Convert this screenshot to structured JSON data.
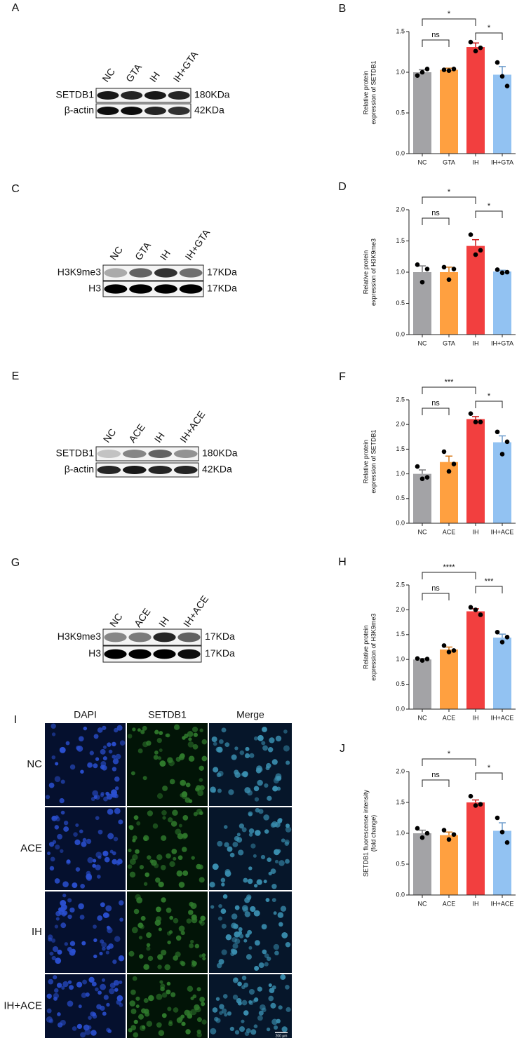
{
  "panels": [
    "A",
    "C",
    "E",
    "G",
    "I"
  ],
  "blots": [
    {
      "lanes": [
        "NC",
        "GTA",
        "IH",
        "IH+GTA"
      ],
      "rows": [
        {
          "name": "SETDB1",
          "size": "180KDa"
        },
        {
          "name": "β-actin",
          "size": "42KDa"
        }
      ]
    },
    {
      "lanes": [
        "NC",
        "GTA",
        "IH",
        "IH+GTA"
      ],
      "rows": [
        {
          "name": "H3K9me3",
          "size": "17KDa"
        },
        {
          "name": "H3",
          "size": "17KDa"
        }
      ]
    },
    {
      "lanes": [
        "NC",
        "ACE",
        "IH",
        "IH+ACE"
      ],
      "rows": [
        {
          "name": "SETDB1",
          "size": "180KDa"
        },
        {
          "name": "β-actin",
          "size": "42KDa"
        }
      ]
    },
    {
      "lanes": [
        "NC",
        "ACE",
        "IH",
        "IH+ACE"
      ],
      "rows": [
        {
          "name": "H3K9me3",
          "size": "17KDa"
        },
        {
          "name": "H3",
          "size": "17KDa"
        }
      ]
    }
  ],
  "microscopy": {
    "columns": [
      "DAPI",
      "SETDB1",
      "Merge"
    ],
    "rows": [
      "NC",
      "ACE",
      "IH",
      "IH+ACE"
    ],
    "scale_bar": "200 μm"
  },
  "chart_data": [
    {
      "type": "bar",
      "label": "B",
      "ylabel": [
        "Relative protein",
        "expression of SETDB1"
      ],
      "categories": [
        "NC",
        "GTA",
        "IH",
        "IH+GTA"
      ],
      "values": [
        1.0,
        1.03,
        1.31,
        0.97
      ],
      "errors": [
        0.03,
        0.02,
        0.05,
        0.1
      ],
      "points": [
        [
          0.96,
          1.0,
          1.04
        ],
        [
          1.03,
          1.02,
          1.04
        ],
        [
          1.37,
          1.26,
          1.3
        ],
        [
          1.12,
          0.95,
          0.83
        ]
      ],
      "colors": [
        "#a3a3a6",
        "#ffa040",
        "#f23f3f",
        "#92c2f2"
      ],
      "ylim": [
        0,
        1.5
      ],
      "yticks": [
        {
          "value": 0,
          "label": "0.0"
        },
        {
          "value": 0.5,
          "label": "0.5"
        },
        {
          "value": 1,
          "label": "1.0"
        },
        {
          "value": 1.5,
          "label": "1.5"
        }
      ],
      "annotations": [
        "*",
        "ns",
        "*"
      ]
    },
    {
      "type": "bar",
      "label": "D",
      "ylabel": [
        "Relative protein",
        "expression of H3K9me3"
      ],
      "categories": [
        "NC",
        "GTA",
        "IH",
        "IH+GTA"
      ],
      "values": [
        1.0,
        1.0,
        1.42,
        1.01
      ],
      "errors": [
        0.1,
        0.08,
        0.1,
        0.02
      ],
      "points": [
        [
          1.12,
          0.84,
          1.05
        ],
        [
          1.08,
          0.88,
          1.05
        ],
        [
          1.6,
          1.28,
          1.35
        ],
        [
          1.04,
          0.99,
          1.0
        ]
      ],
      "colors": [
        "#a3a3a6",
        "#ffa040",
        "#f23f3f",
        "#92c2f2"
      ],
      "ylim": [
        0,
        2
      ],
      "yticks": [
        {
          "value": 0,
          "label": "0.0"
        },
        {
          "value": 0.5,
          "label": "0.5"
        },
        {
          "value": 1,
          "label": "1.0"
        },
        {
          "value": 1.5,
          "label": "1.5"
        },
        {
          "value": 2,
          "label": "2.0"
        }
      ],
      "annotations": [
        "*",
        "ns",
        "*"
      ]
    },
    {
      "type": "bar",
      "label": "F",
      "ylabel": [
        "Relative protein",
        "expression of SETDB1"
      ],
      "categories": [
        "NC",
        "ACE",
        "IH",
        "IH+ACE"
      ],
      "values": [
        1.0,
        1.24,
        2.11,
        1.64
      ],
      "errors": [
        0.08,
        0.12,
        0.05,
        0.13
      ],
      "points": [
        [
          1.15,
          0.9,
          0.93
        ],
        [
          1.45,
          1.05,
          1.2
        ],
        [
          2.22,
          2.05,
          2.05
        ],
        [
          1.85,
          1.4,
          1.65
        ]
      ],
      "colors": [
        "#a3a3a6",
        "#ffa040",
        "#f23f3f",
        "#92c2f2"
      ],
      "ylim": [
        0,
        2.5
      ],
      "yticks": [
        {
          "value": 0,
          "label": "0.0"
        },
        {
          "value": 0.5,
          "label": "0.5"
        },
        {
          "value": 1,
          "label": "1.0"
        },
        {
          "value": 1.5,
          "label": "1.5"
        },
        {
          "value": 2,
          "label": "2.0"
        },
        {
          "value": 2.5,
          "label": "2.5"
        }
      ],
      "annotations": [
        "***",
        "ns",
        "*"
      ]
    },
    {
      "type": "bar",
      "label": "H",
      "ylabel": [
        "Relative protein",
        "expression of H3K9me3"
      ],
      "categories": [
        "NC",
        "ACE",
        "IH",
        "IH+ACE"
      ],
      "values": [
        1.0,
        1.2,
        1.97,
        1.44
      ],
      "errors": [
        0.02,
        0.05,
        0.05,
        0.07
      ],
      "points": [
        [
          1.02,
          0.98,
          1.01
        ],
        [
          1.28,
          1.15,
          1.18
        ],
        [
          2.05,
          2.0,
          1.9
        ],
        [
          1.55,
          1.35,
          1.45
        ]
      ],
      "colors": [
        "#a3a3a6",
        "#ffa040",
        "#f23f3f",
        "#92c2f2"
      ],
      "ylim": [
        0,
        2.5
      ],
      "yticks": [
        {
          "value": 0,
          "label": "0.0"
        },
        {
          "value": 0.5,
          "label": "0.5"
        },
        {
          "value": 1,
          "label": "1.0"
        },
        {
          "value": 1.5,
          "label": "1.5"
        },
        {
          "value": 2,
          "label": "2.0"
        },
        {
          "value": 2.5,
          "label": "2.5"
        }
      ],
      "annotations": [
        "****",
        "ns",
        "***"
      ]
    },
    {
      "type": "bar",
      "label": "J",
      "ylabel": [
        "SETDB1 fluorescense intensity",
        "(fold change)"
      ],
      "categories": [
        "NC",
        "ACE",
        "IH",
        "IH+ACE"
      ],
      "values": [
        1.0,
        0.97,
        1.5,
        1.04
      ],
      "errors": [
        0.05,
        0.05,
        0.04,
        0.13
      ],
      "points": [
        [
          1.08,
          0.93,
          1.0
        ],
        [
          1.05,
          0.9,
          0.98
        ],
        [
          1.6,
          1.45,
          1.47
        ],
        [
          1.25,
          1.02,
          0.85
        ]
      ],
      "colors": [
        "#a3a3a6",
        "#ffa040",
        "#f23f3f",
        "#92c2f2"
      ],
      "ylim": [
        0,
        2
      ],
      "yticks": [
        {
          "value": 0,
          "label": "0.0"
        },
        {
          "value": 0.5,
          "label": "0.5"
        },
        {
          "value": 1,
          "label": "1.0"
        },
        {
          "value": 1.5,
          "label": "1.5"
        },
        {
          "value": 2,
          "label": "2.0"
        }
      ],
      "annotations": [
        "*",
        "ns",
        "*"
      ]
    }
  ]
}
